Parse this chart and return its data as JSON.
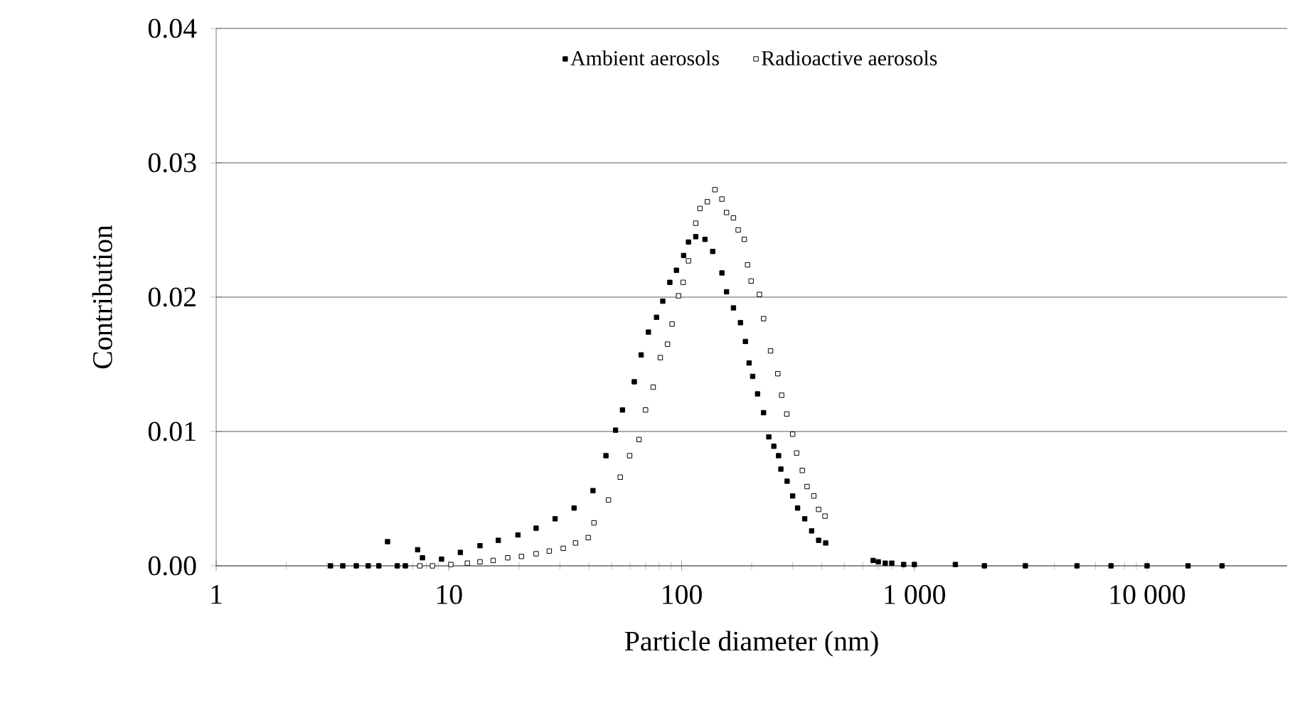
{
  "chart_data": {
    "type": "scatter",
    "xlabel": "Particle diameter (nm)",
    "ylabel": "Contribution",
    "log": "x",
    "xlim": [
      1,
      40000
    ],
    "ylim": [
      0,
      0.04
    ],
    "xticks": [
      {
        "value": 1,
        "label": "1"
      },
      {
        "value": 10,
        "label": "10"
      },
      {
        "value": 100,
        "label": "100"
      },
      {
        "value": 1000,
        "label": "1 000"
      },
      {
        "value": 10000,
        "label": "10 000"
      }
    ],
    "yticks": [
      {
        "value": 0,
        "label": "0.00"
      },
      {
        "value": 0.01,
        "label": "0.01"
      },
      {
        "value": 0.02,
        "label": "0.02"
      },
      {
        "value": 0.03,
        "label": "0.03"
      },
      {
        "value": 0.04,
        "label": "0.04"
      }
    ],
    "grid": "y",
    "legend": "top",
    "marker": "square",
    "series": [
      {
        "name": "Ambient aerosols",
        "color": "#000000",
        "x": [
          3.1,
          3.5,
          4,
          4.5,
          5,
          5.45,
          6,
          6.5,
          7.34,
          7.7,
          9.3,
          11.2,
          13.6,
          16.3,
          19.8,
          23.7,
          28.6,
          34.5,
          41.6,
          47.3,
          52,
          55.7,
          62.6,
          67,
          72,
          78,
          83,
          89,
          95,
          102,
          107,
          115,
          126,
          136,
          149,
          156,
          167,
          179,
          188,
          195,
          202,
          212,
          225,
          237,
          249,
          261,
          267,
          284,
          300,
          315,
          338,
          362,
          388,
          416,
          665,
          700,
          750,
          800,
          900,
          1000,
          1500,
          2000,
          3000,
          5000,
          7000,
          10000,
          15000,
          21000
        ],
        "values": [
          0,
          0,
          0,
          0,
          0,
          0.0018,
          0,
          0,
          0.0012,
          0.0006,
          0.0005,
          0.001,
          0.0015,
          0.0019,
          0.0023,
          0.0028,
          0.0035,
          0.0043,
          0.0056,
          0.0082,
          0.0101,
          0.0116,
          0.0137,
          0.0157,
          0.0174,
          0.0185,
          0.0197,
          0.0211,
          0.022,
          0.0231,
          0.0241,
          0.0245,
          0.0243,
          0.0234,
          0.0218,
          0.0204,
          0.0192,
          0.0181,
          0.0167,
          0.0151,
          0.0141,
          0.0128,
          0.0114,
          0.0096,
          0.0089,
          0.0082,
          0.0072,
          0.0063,
          0.0052,
          0.0043,
          0.0035,
          0.0026,
          0.0019,
          0.0017,
          0.0004,
          0.0003,
          0.0002,
          0.0002,
          0.0001,
          0.0001,
          0.0001,
          0,
          0,
          0,
          0,
          0,
          0,
          0
        ]
      },
      {
        "name": "Radioactive aerosols",
        "color": "#ffffff",
        "x": [
          7.5,
          8.5,
          10.2,
          12,
          13.6,
          15.5,
          17.9,
          20.5,
          23.7,
          27,
          31,
          35,
          39.7,
          42,
          48.5,
          54.5,
          59.8,
          65.6,
          70,
          75.5,
          81,
          87,
          91,
          97,
          101.5,
          107,
          115,
          120,
          129,
          139,
          149,
          156,
          167,
          175,
          186,
          192,
          199,
          216,
          225,
          241,
          259,
          269,
          283,
          300,
          312,
          330,
          346,
          370,
          388,
          413
        ],
        "values": [
          0,
          0,
          0.0001,
          0.0002,
          0.0003,
          0.0004,
          0.0006,
          0.0007,
          0.0009,
          0.0011,
          0.0013,
          0.0017,
          0.0021,
          0.0032,
          0.0049,
          0.0066,
          0.0082,
          0.0094,
          0.0116,
          0.0133,
          0.0155,
          0.0165,
          0.018,
          0.0201,
          0.0211,
          0.0227,
          0.0255,
          0.0266,
          0.0271,
          0.028,
          0.0273,
          0.0263,
          0.0259,
          0.025,
          0.0243,
          0.0224,
          0.0212,
          0.0202,
          0.0184,
          0.016,
          0.0143,
          0.0127,
          0.0113,
          0.0098,
          0.0084,
          0.0071,
          0.0059,
          0.0052,
          0.0042,
          0.0037
        ]
      }
    ]
  }
}
